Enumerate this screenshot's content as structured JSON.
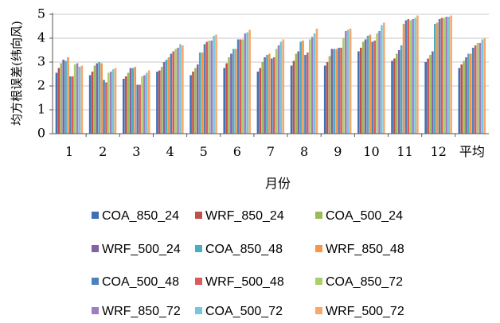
{
  "chart_data": {
    "type": "bar",
    "ylabel": "均方根误差(纬向风)",
    "xlabel": "月份",
    "ylim": [
      0,
      5
    ],
    "yticks": [
      "0",
      "1",
      "2",
      "3",
      "4",
      "5"
    ],
    "grid": true,
    "legend_position": "bottom",
    "categories": [
      "1",
      "2",
      "3",
      "4",
      "5",
      "6",
      "7",
      "8",
      "9",
      "10",
      "11",
      "12",
      "平均"
    ],
    "series": [
      {
        "name": "COA_850_24",
        "color": "#3f6fb5",
        "values": [
          2.55,
          2.45,
          2.3,
          2.6,
          2.45,
          2.75,
          2.6,
          2.85,
          2.85,
          3.45,
          3.05,
          3.0,
          2.75
        ]
      },
      {
        "name": "WRF_850_24",
        "color": "#c0504d",
        "values": [
          2.75,
          2.6,
          2.4,
          2.65,
          2.6,
          2.95,
          2.75,
          3.05,
          3.0,
          3.6,
          3.15,
          3.15,
          2.9
        ]
      },
      {
        "name": "COA_500_24",
        "color": "#9bbb59",
        "values": [
          2.95,
          2.85,
          2.55,
          2.8,
          2.75,
          3.2,
          3.0,
          3.35,
          3.25,
          3.85,
          3.35,
          3.3,
          3.05
        ]
      },
      {
        "name": "WRF_500_24",
        "color": "#8064a2",
        "values": [
          3.1,
          2.95,
          2.75,
          3.0,
          2.9,
          3.35,
          3.2,
          3.45,
          3.55,
          3.95,
          3.5,
          3.45,
          3.2
        ]
      },
      {
        "name": "COA_850_48",
        "color": "#4bacc6",
        "values": [
          3.05,
          3.0,
          2.75,
          3.1,
          3.4,
          3.55,
          3.3,
          3.85,
          3.55,
          4.1,
          3.7,
          4.6,
          3.35
        ]
      },
      {
        "name": "WRF_850_48",
        "color": "#f79646",
        "values": [
          3.2,
          2.95,
          2.8,
          3.2,
          3.4,
          3.55,
          3.35,
          3.9,
          3.55,
          4.15,
          4.6,
          4.65,
          3.35
        ]
      },
      {
        "name": "COA_500_48",
        "color": "#4f81bd",
        "values": [
          2.4,
          2.25,
          2.05,
          3.35,
          3.75,
          3.95,
          3.15,
          3.3,
          3.6,
          3.85,
          4.75,
          4.8,
          3.6
        ]
      },
      {
        "name": "WRF_500_48",
        "color": "#d95c5a",
        "values": [
          2.4,
          2.15,
          2.05,
          3.45,
          3.85,
          3.95,
          3.2,
          3.4,
          3.6,
          3.9,
          4.8,
          4.85,
          3.7
        ]
      },
      {
        "name": "COA_850_72",
        "color": "#a9cf6b",
        "values": [
          2.9,
          2.55,
          2.4,
          3.55,
          3.9,
          3.95,
          3.55,
          3.95,
          4.0,
          4.2,
          4.75,
          4.85,
          3.8
        ]
      },
      {
        "name": "WRF_850_72",
        "color": "#9b7fc1",
        "values": [
          2.95,
          2.6,
          2.45,
          3.6,
          3.9,
          4.2,
          3.7,
          4.05,
          4.3,
          4.3,
          4.8,
          4.9,
          3.8
        ]
      },
      {
        "name": "COA_500_72",
        "color": "#74c7dc",
        "values": [
          2.8,
          2.7,
          2.55,
          3.75,
          4.1,
          4.25,
          3.85,
          4.2,
          4.35,
          4.55,
          4.85,
          4.9,
          3.95
        ]
      },
      {
        "name": "WRF_500_72",
        "color": "#f9a86a",
        "values": [
          2.85,
          2.75,
          2.65,
          3.7,
          4.15,
          4.35,
          3.95,
          4.4,
          4.4,
          4.65,
          4.95,
          4.95,
          4.0
        ]
      }
    ]
  }
}
